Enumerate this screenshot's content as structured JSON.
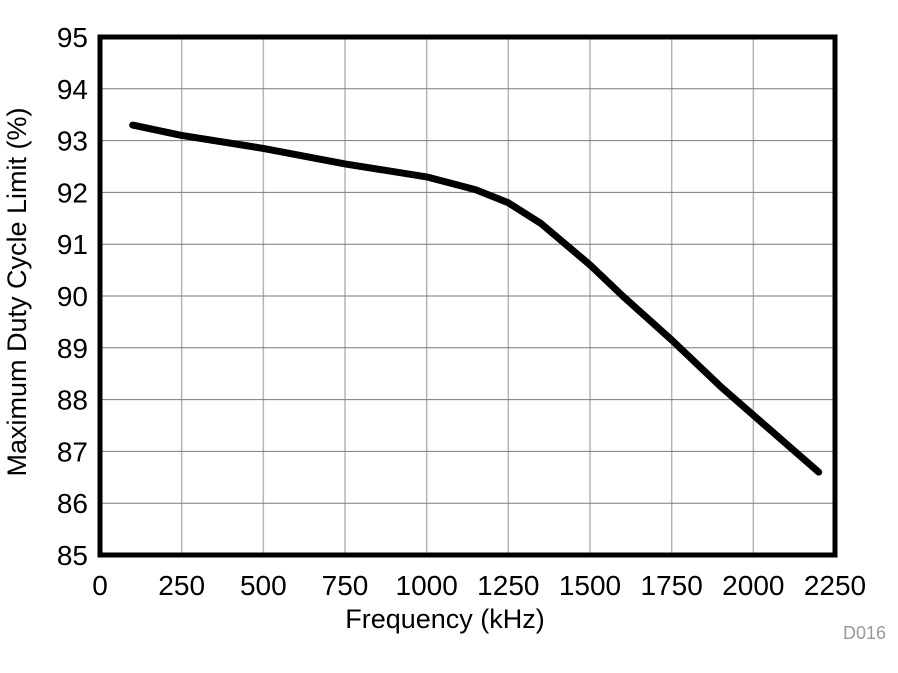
{
  "figure": {
    "watermark": "D016",
    "background_color": "#ffffff"
  },
  "chart_data": {
    "type": "line",
    "title": "",
    "xlabel": "Frequency (kHz)",
    "ylabel": "Maximum Duty Cycle Limit (%)",
    "xlim": [
      0,
      2250
    ],
    "ylim": [
      85,
      95
    ],
    "x_ticks": [
      0,
      250,
      500,
      750,
      1000,
      1250,
      1500,
      1750,
      2000,
      2250
    ],
    "y_ticks": [
      85,
      86,
      87,
      88,
      89,
      90,
      91,
      92,
      93,
      94,
      95
    ],
    "grid": true,
    "legend": "none",
    "series": [
      {
        "name": "Maximum Duty Cycle Limit",
        "x": [
          100,
          250,
          500,
          750,
          1000,
          1150,
          1250,
          1350,
          1500,
          1600,
          1750,
          1900,
          2000,
          2100,
          2200
        ],
        "y": [
          93.3,
          93.1,
          92.85,
          92.55,
          92.3,
          92.05,
          91.8,
          91.4,
          90.6,
          90.0,
          89.15,
          88.25,
          87.7,
          87.15,
          86.6
        ],
        "color": "#000000",
        "line_width": 7
      }
    ],
    "styles": {
      "frame_color": "#000000",
      "frame_width": 5,
      "h_grid_color": "#7a7a7a",
      "v_grid_color": "#b5b5b5",
      "tick_color": "#000000",
      "watermark_color": "#999999"
    }
  }
}
